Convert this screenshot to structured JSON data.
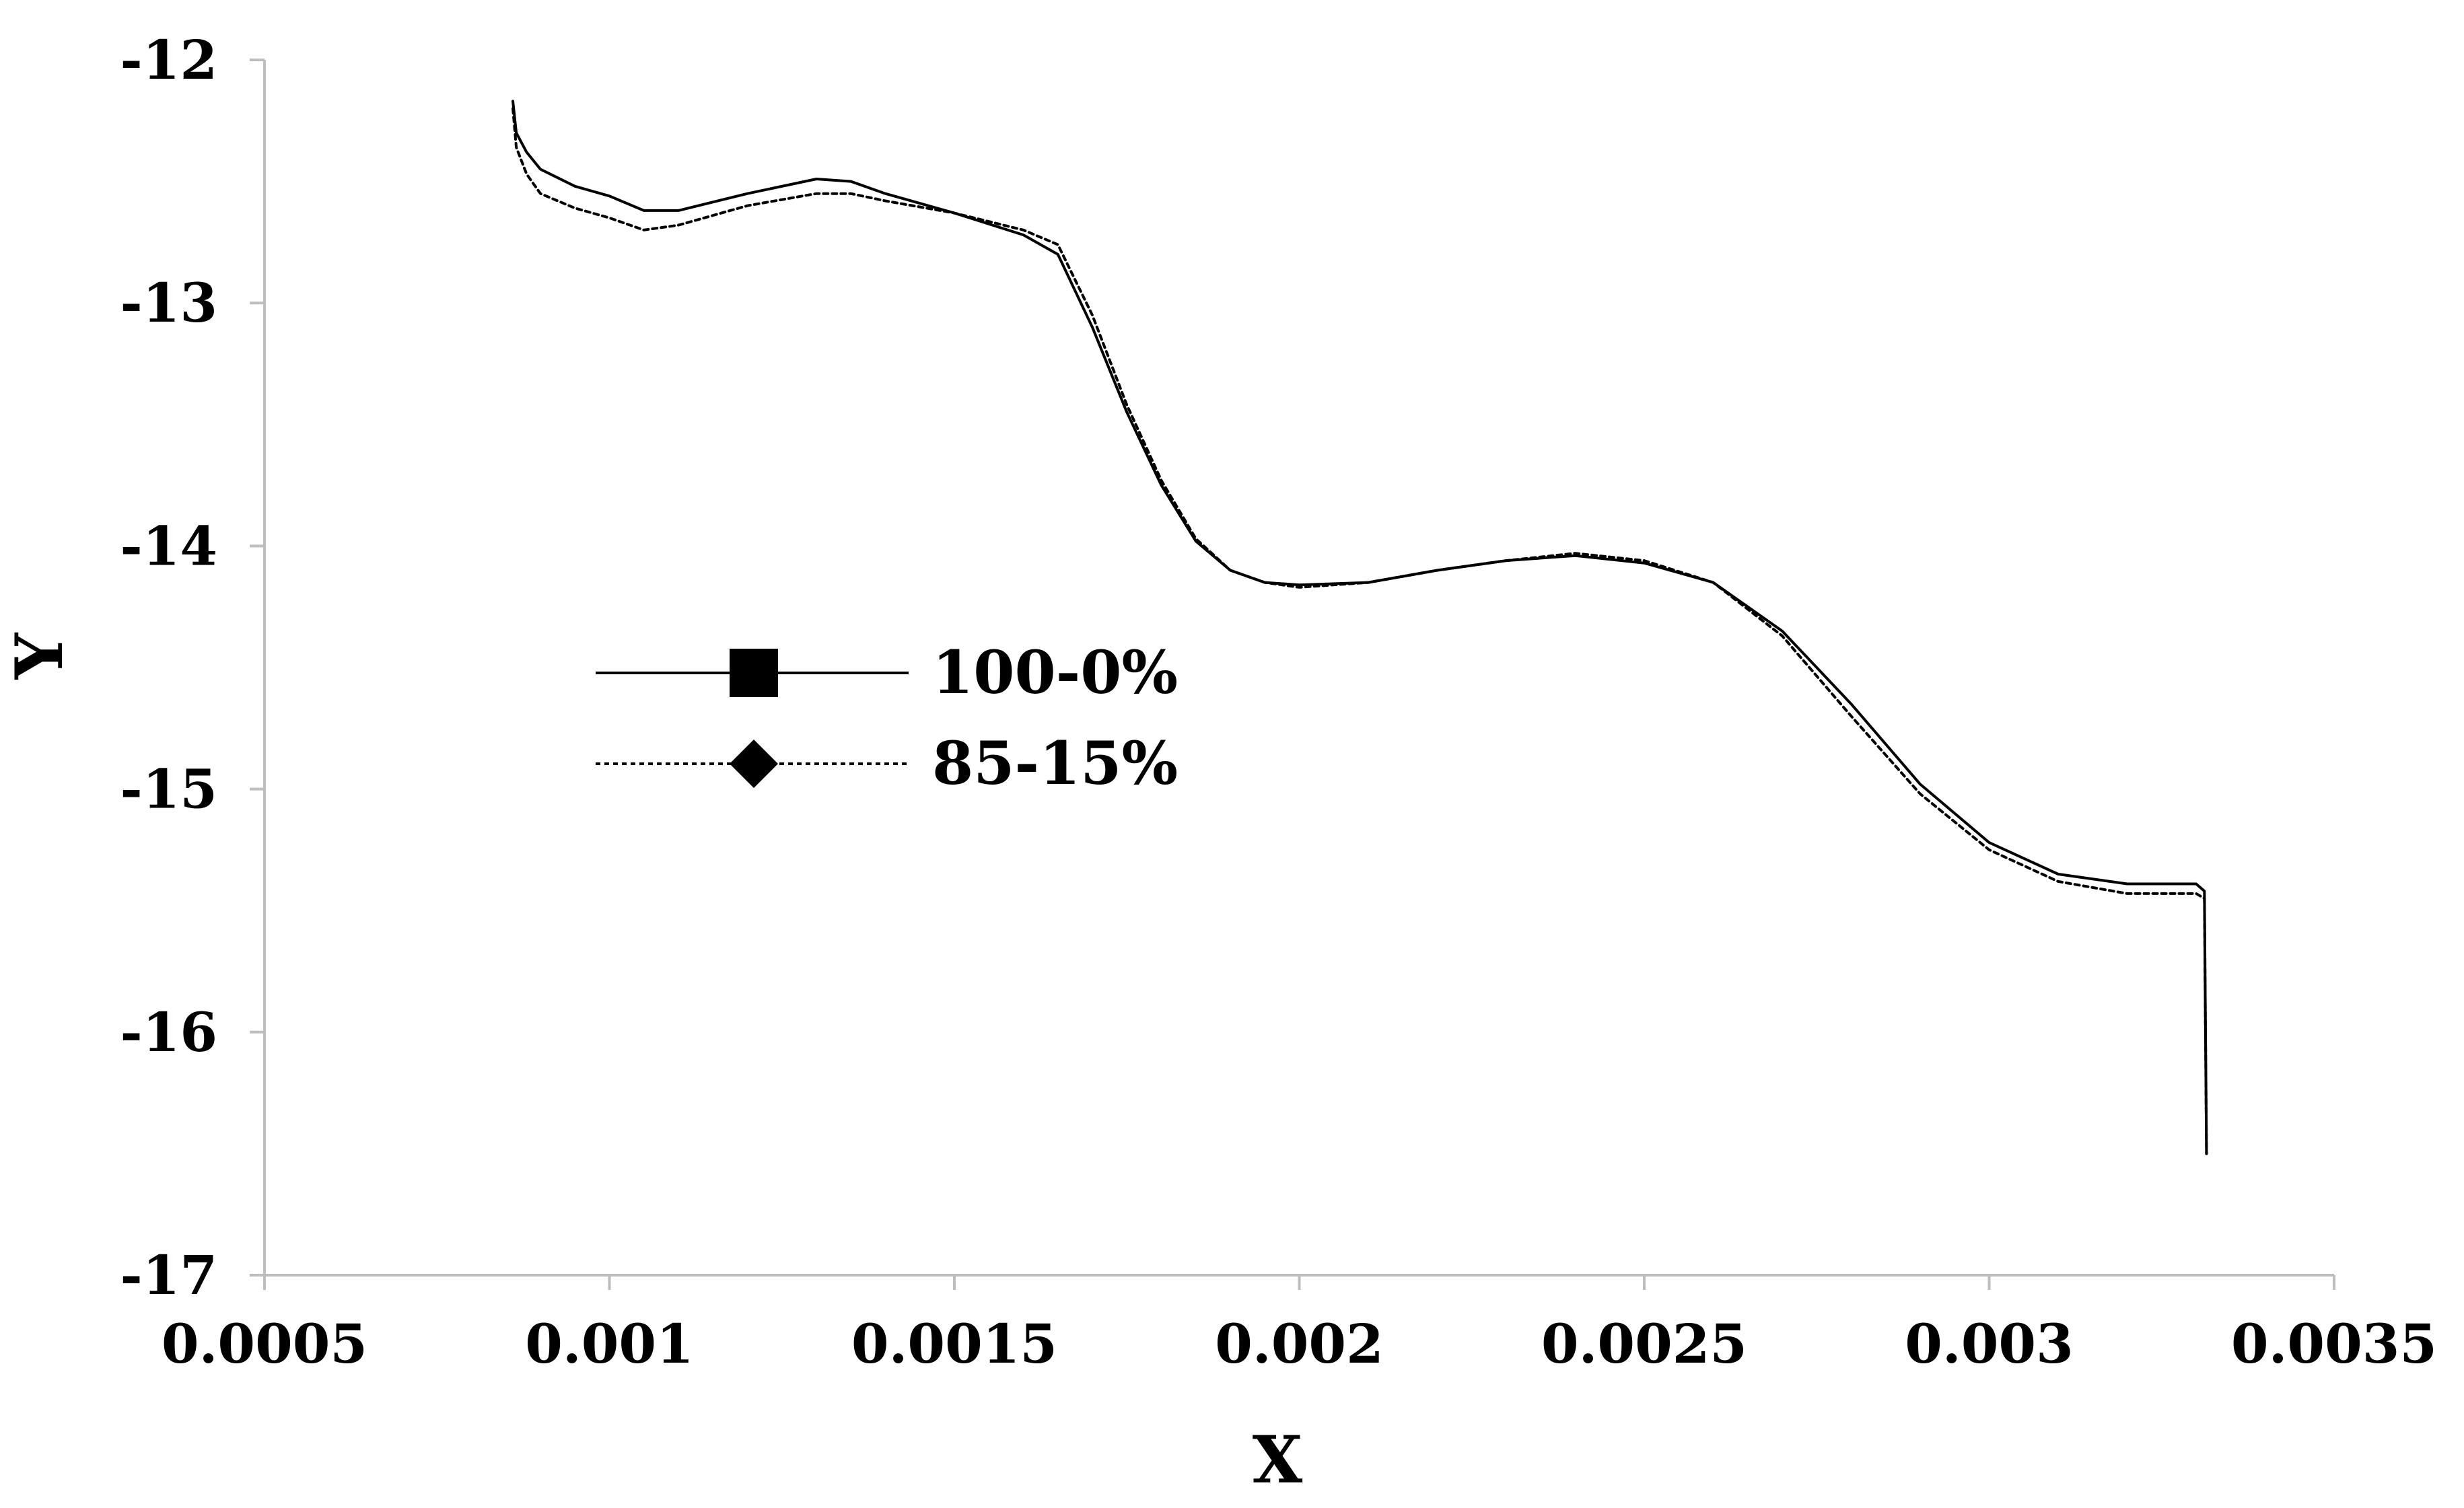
{
  "chart_data": {
    "type": "line",
    "title": "",
    "xlabel": "X",
    "ylabel": "Y",
    "xlim": [
      0.0005,
      0.0035
    ],
    "ylim": [
      -17,
      -12
    ],
    "x_ticks": [
      0.0005,
      0.001,
      0.0015,
      0.002,
      0.0025,
      0.003,
      0.0035
    ],
    "x_tick_labels": [
      "0.0005",
      "0.001",
      "0.0015",
      "0.002",
      "0.0025",
      "0.003",
      "0.0035"
    ],
    "y_ticks": [
      -12,
      -13,
      -14,
      -15,
      -16,
      -17
    ],
    "y_tick_labels": [
      "-12",
      "-13",
      "-14",
      "-15",
      "-16",
      "-17"
    ],
    "grid": false,
    "legend_position": "center-left",
    "series": [
      {
        "name": "100-0%",
        "line_style": "solid",
        "marker": "square",
        "color": "#000000",
        "points": [
          [
            0.00086,
            -12.17
          ],
          [
            0.000865,
            -12.3
          ],
          [
            0.00088,
            -12.38
          ],
          [
            0.0009,
            -12.45
          ],
          [
            0.00095,
            -12.52
          ],
          [
            0.001,
            -12.56
          ],
          [
            0.00105,
            -12.62
          ],
          [
            0.0011,
            -12.62
          ],
          [
            0.0012,
            -12.55
          ],
          [
            0.0013,
            -12.49
          ],
          [
            0.00135,
            -12.5
          ],
          [
            0.0014,
            -12.55
          ],
          [
            0.0015,
            -12.63
          ],
          [
            0.0016,
            -12.72
          ],
          [
            0.00165,
            -12.8
          ],
          [
            0.0017,
            -13.1
          ],
          [
            0.00175,
            -13.45
          ],
          [
            0.0018,
            -13.75
          ],
          [
            0.00185,
            -13.98
          ],
          [
            0.0019,
            -14.1
          ],
          [
            0.00195,
            -14.15
          ],
          [
            0.002,
            -14.16
          ],
          [
            0.0021,
            -14.15
          ],
          [
            0.0022,
            -14.1
          ],
          [
            0.0023,
            -14.06
          ],
          [
            0.0024,
            -14.04
          ],
          [
            0.0025,
            -14.07
          ],
          [
            0.0026,
            -14.15
          ],
          [
            0.0027,
            -14.35
          ],
          [
            0.0028,
            -14.65
          ],
          [
            0.0029,
            -14.98
          ],
          [
            0.003,
            -15.22
          ],
          [
            0.0031,
            -15.35
          ],
          [
            0.0032,
            -15.39
          ],
          [
            0.0033,
            -15.39
          ],
          [
            0.003312,
            -15.42
          ],
          [
            0.003315,
            -16.5
          ]
        ]
      },
      {
        "name": "85-15%",
        "line_style": "dotted",
        "marker": "diamond",
        "color": "#000000",
        "points": [
          [
            0.00086,
            -12.2
          ],
          [
            0.000865,
            -12.36
          ],
          [
            0.00088,
            -12.47
          ],
          [
            0.0009,
            -12.55
          ],
          [
            0.00095,
            -12.61
          ],
          [
            0.001,
            -12.65
          ],
          [
            0.00105,
            -12.7
          ],
          [
            0.0011,
            -12.68
          ],
          [
            0.0012,
            -12.6
          ],
          [
            0.0013,
            -12.55
          ],
          [
            0.00135,
            -12.55
          ],
          [
            0.0014,
            -12.58
          ],
          [
            0.0015,
            -12.63
          ],
          [
            0.0016,
            -12.7
          ],
          [
            0.00165,
            -12.76
          ],
          [
            0.0017,
            -13.05
          ],
          [
            0.00175,
            -13.42
          ],
          [
            0.0018,
            -13.73
          ],
          [
            0.00185,
            -13.97
          ],
          [
            0.0019,
            -14.1
          ],
          [
            0.00195,
            -14.15
          ],
          [
            0.002,
            -14.17
          ],
          [
            0.0021,
            -14.15
          ],
          [
            0.0022,
            -14.1
          ],
          [
            0.0023,
            -14.06
          ],
          [
            0.0024,
            -14.03
          ],
          [
            0.0025,
            -14.06
          ],
          [
            0.0026,
            -14.15
          ],
          [
            0.0027,
            -14.37
          ],
          [
            0.0028,
            -14.7
          ],
          [
            0.0029,
            -15.02
          ],
          [
            0.003,
            -15.25
          ],
          [
            0.0031,
            -15.38
          ],
          [
            0.0032,
            -15.43
          ],
          [
            0.0033,
            -15.43
          ],
          [
            0.003312,
            -15.45
          ],
          [
            0.003315,
            -16.5
          ]
        ]
      }
    ]
  }
}
